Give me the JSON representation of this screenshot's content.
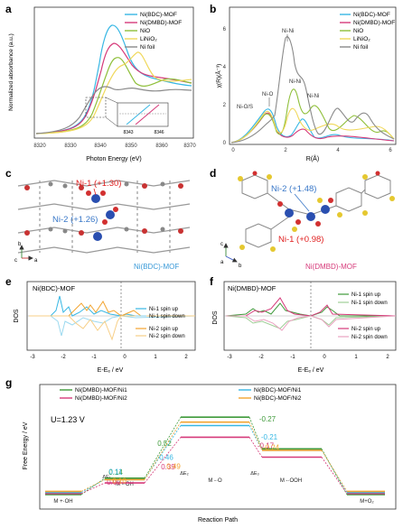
{
  "panels": {
    "a": {
      "label": "a",
      "xlabel": "Photon Energy (eV)",
      "ylabel": "Normalized absorbance (a.u.)",
      "xticks": [
        "8320",
        "8330",
        "8340",
        "8350",
        "8360",
        "8370"
      ],
      "inset_ticks": [
        "8343",
        "8346"
      ],
      "legend": [
        "Ni(BDC)-MOF",
        "Ni(DMBD)-MOF",
        "NiO",
        "LiNiO₂",
        "Ni foil"
      ]
    },
    "b": {
      "label": "b",
      "xlabel": "R(Å)",
      "ylabel": "χ(R)(Å⁻³)",
      "xticks": [
        "0",
        "2",
        "4",
        "6"
      ],
      "yticks": [
        "0",
        "2",
        "4",
        "6"
      ],
      "legend": [
        "Ni(BDC)-MOF",
        "Ni(DMBD)-MOF",
        "NiO",
        "LiNiO₂",
        "Ni foil"
      ],
      "annotations": [
        "Ni-Ni",
        "Ni-Ni",
        "Ni-O",
        "Ni-O/S",
        "Ni-Ni"
      ]
    },
    "c": {
      "label": "c",
      "ni1": "Ni-1 (+1.30)",
      "ni2": "Ni-2 (+1.26)",
      "name": "Ni(BDC)-MOF",
      "axes": [
        "b",
        "c",
        "a"
      ]
    },
    "d": {
      "label": "d",
      "ni2": "Ni-2 (+1.48)",
      "ni1": "Ni-1 (+0.98)",
      "name": "Ni(DMBD)-MOF",
      "axes": [
        "c",
        "a",
        "b"
      ]
    },
    "e": {
      "label": "e",
      "title": "Ni(BDC)-MOF",
      "ylabel": "DOS",
      "xlabel": "E-Eₑ / eV",
      "xticks": [
        "-3",
        "-2",
        "-1",
        "0",
        "1",
        "2"
      ],
      "legend": [
        "Ni-1 spin up",
        "Ni-1 spin down",
        "Ni-2 spin up",
        "Ni-2 spin down"
      ]
    },
    "f": {
      "label": "f",
      "title": "Ni(DMBD)-MOF",
      "ylabel": "DOS",
      "xlabel": "E-Eₑ / eV",
      "xticks": [
        "-3",
        "-2",
        "-1",
        "0",
        "1",
        "2"
      ],
      "legend": [
        "Ni-1 spin up",
        "Ni-1 spin down",
        "Ni-2 spin up",
        "Ni-2 spin down"
      ]
    },
    "g": {
      "label": "g",
      "ylabel": "Free Energy / eV",
      "xlabel": "Reaction Path",
      "condition": "U=1.23 V",
      "legend": [
        "Ni(DMBD)-MOF/Ni1",
        "Ni(DMBD)-MOF/Ni2",
        "Ni(BDC)-MOF/Ni1",
        "Ni(BDC)-MOF/Ni2"
      ],
      "steps": [
        "M +·OH",
        "M -·OH",
        "M -·O",
        "M -·OOH",
        "M+O₂"
      ],
      "delta_labels": [
        "ΔE₁",
        "ΔE₂",
        "ΔE₃"
      ]
    }
  },
  "colors": {
    "bdc": "#37b7e4",
    "dmbd": "#d63a7a",
    "nio": "#8fbf3a",
    "linio2": "#f0d85a",
    "nifoil": "#8a8a8a",
    "ni1_red": "#e02020",
    "ni2_blue": "#3a78c8",
    "dmbd_green": "#3f9a3a",
    "bdc_orange": "#f2a430"
  },
  "chart_data": [
    {
      "panel": "g",
      "type": "line",
      "x": [
        "M +·OH",
        "M -·OH",
        "M -·O",
        "M -·OOH",
        "M+O₂"
      ],
      "series": [
        {
          "name": "Ni(DMBD)-MOF/Ni1",
          "color": "#3f9a3a",
          "values": [
            0,
            0.14,
            0.52,
            -0.27,
            0
          ]
        },
        {
          "name": "Ni(DMBD)-MOF/Ni2",
          "color": "#d63a7a",
          "values": [
            0,
            0.09,
            0.39,
            -0.17,
            0
          ]
        },
        {
          "name": "Ni(BDC)-MOF/Ni1",
          "color": "#37b7e4",
          "values": [
            0,
            0.11,
            0.46,
            -0.21,
            0
          ]
        },
        {
          "name": "Ni(BDC)-MOF/Ni2",
          "color": "#f2a430",
          "values": [
            0,
            0.1,
            0.49,
            -0.24,
            0
          ]
        }
      ],
      "xlabel": "Reaction Path",
      "ylabel": "Free Energy / eV"
    }
  ]
}
